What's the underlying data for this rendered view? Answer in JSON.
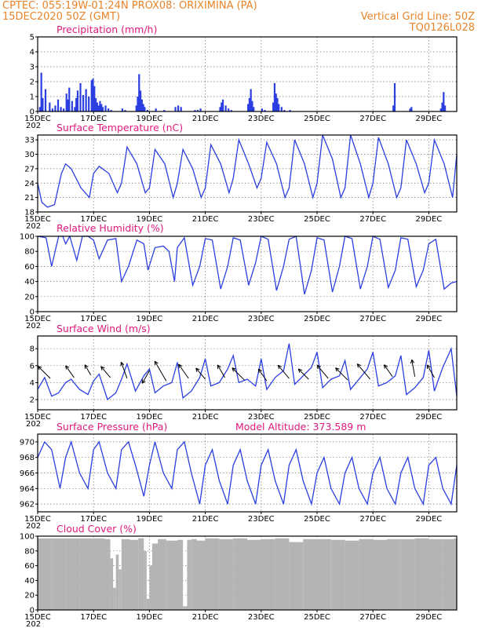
{
  "header": {
    "line1_left": "CPTEC:   055:19W-01:24N   PROX08: ORIXIMINA (PA)",
    "line2_left": "15DEC2020 50Z (GMT)",
    "line2_right": "Vertical Grid Line: 50Z",
    "line3_right": "TQ0126L028"
  },
  "colors": {
    "header": "#e8842a",
    "panel_title": "#e0197d",
    "series": "#2b3fe0",
    "cloud": "#b4b4b4",
    "wind_arrow": "#000000"
  },
  "x_ticks": [
    "15DEC",
    "17DEC",
    "19DEC",
    "21DEC",
    "23DEC",
    "25DEC",
    "27DEC",
    "29DEC"
  ],
  "x_year_fragment": "202",
  "chart_data": [
    {
      "id": "precip",
      "type": "bar",
      "title": "Precipitation  (mm/h)",
      "ylim": [
        0,
        5
      ],
      "yticks": [
        0,
        1,
        2,
        3,
        4,
        5
      ],
      "xlim": [
        0,
        15
      ],
      "series": [
        {
          "x": [
            0.05,
            0.1,
            0.15,
            0.25,
            0.4,
            0.5,
            0.6,
            0.7,
            0.8,
            0.9,
            1.0,
            1.05,
            1.1,
            1.2,
            1.3,
            1.35,
            1.4,
            1.5,
            1.6,
            1.7,
            1.8,
            1.9,
            1.95,
            2.0,
            2.05,
            2.1,
            2.15,
            2.2,
            2.25,
            2.3,
            2.4,
            2.5,
            2.6,
            3.0,
            3.1,
            3.5,
            3.55,
            3.6,
            3.65,
            3.7,
            3.75,
            3.8,
            3.9,
            4.2,
            4.5,
            4.9,
            5.0,
            5.1,
            5.6,
            5.7,
            5.8,
            6.5,
            6.55,
            6.6,
            6.7,
            6.8,
            6.9,
            7.5,
            7.55,
            7.6,
            7.65,
            7.7,
            8.0,
            8.1,
            8.4,
            8.45,
            8.5,
            8.55,
            8.6,
            8.7,
            8.8,
            9.0,
            12.7,
            12.75,
            13.3,
            13.35,
            14.4,
            14.45,
            14.5,
            14.55
          ],
          "values": [
            0.3,
            2.6,
            0.9,
            1.5,
            0.6,
            0.2,
            0.4,
            0.8,
            0.3,
            0.2,
            1.2,
            0.8,
            1.6,
            0.7,
            0.3,
            0.9,
            1.4,
            1.9,
            1.1,
            1.5,
            1.0,
            2.1,
            2.2,
            1.7,
            0.9,
            0.6,
            0.4,
            0.7,
            0.5,
            0.3,
            0.4,
            0.2,
            0.1,
            0.2,
            0.1,
            0.4,
            1.0,
            2.5,
            1.4,
            0.8,
            0.5,
            0.3,
            0.1,
            0.2,
            0.1,
            0.3,
            0.4,
            0.3,
            0.1,
            0.1,
            0.2,
            0.3,
            0.6,
            0.8,
            0.4,
            0.2,
            0.1,
            0.5,
            0.9,
            1.5,
            0.7,
            0.3,
            0.2,
            0.1,
            0.6,
            1.9,
            1.2,
            0.9,
            0.5,
            0.3,
            0.1,
            0.1,
            0.4,
            1.9,
            0.2,
            0.3,
            0.2,
            0.6,
            1.3,
            0.4
          ]
        }
      ]
    },
    {
      "id": "temp",
      "type": "line",
      "title": "Surface Temperature  (nC)",
      "ylim": [
        18,
        34
      ],
      "yticks": [
        18,
        21,
        24,
        27,
        30,
        33
      ],
      "xlim": [
        0,
        15
      ],
      "series": [
        {
          "x": [
            0,
            0.15,
            0.35,
            0.6,
            0.85,
            1.0,
            1.2,
            1.55,
            1.85,
            2.0,
            2.2,
            2.55,
            2.85,
            3.0,
            3.2,
            3.55,
            3.85,
            4.0,
            4.2,
            4.55,
            4.85,
            5.0,
            5.2,
            5.55,
            5.85,
            6.0,
            6.2,
            6.55,
            6.85,
            7.0,
            7.2,
            7.55,
            7.85,
            8.0,
            8.2,
            8.55,
            8.85,
            9.0,
            9.2,
            9.55,
            9.85,
            10.0,
            10.2,
            10.55,
            10.85,
            11.0,
            11.2,
            11.55,
            11.85,
            12.0,
            12.2,
            12.55,
            12.85,
            13.0,
            13.2,
            13.55,
            13.85,
            14.0,
            14.2,
            14.55,
            14.85,
            15.0
          ],
          "values": [
            24,
            20,
            19,
            19.5,
            26,
            28,
            27,
            23,
            21,
            26,
            27.5,
            26,
            22,
            24,
            31.5,
            28,
            22,
            23,
            31,
            28,
            21,
            24,
            31,
            27,
            21,
            23,
            32,
            28,
            22,
            25,
            33,
            28,
            23,
            25,
            32.5,
            28,
            21,
            23,
            33,
            28,
            21,
            24,
            34,
            29,
            21,
            23,
            34,
            28,
            21,
            24,
            33.5,
            28,
            21,
            23,
            33,
            28,
            22,
            24,
            33,
            28,
            21,
            30
          ]
        }
      ]
    },
    {
      "id": "rh",
      "type": "line",
      "title": "Relative Humidity  (%)",
      "ylim": [
        0,
        100
      ],
      "yticks": [
        0,
        20,
        40,
        60,
        80,
        100
      ],
      "xlim": [
        0,
        15
      ],
      "series": [
        {
          "x": [
            0,
            0.3,
            0.5,
            0.75,
            0.9,
            1.0,
            1.15,
            1.4,
            1.6,
            1.8,
            2.0,
            2.2,
            2.5,
            2.8,
            3.0,
            3.25,
            3.55,
            3.8,
            3.95,
            4.2,
            4.5,
            4.7,
            4.9,
            5.0,
            5.25,
            5.55,
            5.8,
            6.0,
            6.25,
            6.55,
            6.8,
            7.0,
            7.25,
            7.55,
            7.8,
            8.0,
            8.25,
            8.55,
            8.8,
            9.0,
            9.25,
            9.55,
            9.8,
            10.0,
            10.25,
            10.55,
            10.8,
            11.0,
            11.25,
            11.55,
            11.8,
            12.0,
            12.25,
            12.55,
            12.8,
            13.0,
            13.25,
            13.55,
            13.8,
            14.0,
            14.25,
            14.55,
            14.8,
            15.0
          ],
          "values": [
            100,
            98,
            60,
            100,
            100,
            90,
            100,
            68,
            100,
            100,
            95,
            70,
            95,
            97,
            40,
            60,
            95,
            90,
            55,
            85,
            87,
            80,
            40,
            85,
            98,
            35,
            60,
            97,
            95,
            30,
            60,
            98,
            95,
            35,
            65,
            100,
            96,
            28,
            60,
            96,
            100,
            23,
            55,
            98,
            95,
            26,
            60,
            100,
            97,
            30,
            60,
            100,
            96,
            32,
            55,
            98,
            96,
            33,
            55,
            90,
            96,
            30,
            38,
            40
          ]
        }
      ]
    },
    {
      "id": "wind",
      "type": "line",
      "title": "Surface Wind  (m/s)",
      "ylim": [
        0.8,
        9.5
      ],
      "yticks": [
        2,
        4,
        6,
        8
      ],
      "xlim": [
        0,
        15
      ],
      "series": [
        {
          "x": [
            0,
            0.25,
            0.5,
            0.75,
            1.0,
            1.2,
            1.5,
            1.8,
            2.0,
            2.2,
            2.5,
            2.8,
            3.0,
            3.2,
            3.5,
            3.8,
            4.0,
            4.2,
            4.5,
            4.8,
            5.0,
            5.2,
            5.5,
            5.8,
            6.0,
            6.2,
            6.5,
            6.8,
            7.0,
            7.2,
            7.5,
            7.8,
            8.0,
            8.2,
            8.5,
            8.8,
            9.0,
            9.2,
            9.5,
            9.8,
            10.0,
            10.2,
            10.5,
            10.8,
            11.0,
            11.2,
            11.5,
            11.8,
            12.0,
            12.2,
            12.5,
            12.8,
            13.0,
            13.2,
            13.5,
            13.8,
            14.0,
            14.2,
            14.5,
            14.8,
            15.0
          ],
          "values": [
            3.2,
            4.6,
            2.4,
            2.8,
            4.0,
            4.4,
            3.2,
            2.6,
            4.2,
            5.0,
            2.0,
            2.8,
            4.4,
            6.2,
            3.0,
            4.8,
            5.6,
            2.8,
            3.6,
            4.0,
            6.4,
            2.2,
            3.0,
            4.6,
            6.8,
            3.6,
            4.0,
            5.6,
            7.2,
            4.0,
            4.4,
            3.6,
            6.8,
            3.2,
            4.6,
            5.4,
            8.6,
            3.8,
            4.8,
            5.8,
            7.6,
            3.4,
            4.4,
            4.8,
            6.6,
            3.2,
            4.4,
            5.6,
            7.6,
            3.6,
            4.0,
            4.8,
            7.2,
            2.6,
            3.4,
            4.6,
            7.8,
            3.0,
            5.8,
            8.0,
            2.4
          ]
        }
      ],
      "arrows": [
        {
          "x": 0.45,
          "y": 4.5,
          "speed": 4,
          "toward": 225
        },
        {
          "x": 1.3,
          "y": 4.6,
          "speed": 3,
          "toward": 235
        },
        {
          "x": 1.9,
          "y": 4.9,
          "speed": 2,
          "toward": 240
        },
        {
          "x": 2.6,
          "y": 4.6,
          "speed": 3,
          "toward": 230
        },
        {
          "x": 3.2,
          "y": 4.5,
          "speed": 4,
          "toward": 250
        },
        {
          "x": 4.0,
          "y": 5.4,
          "speed": 3,
          "toward": 120
        },
        {
          "x": 4.6,
          "y": 4.2,
          "speed": 6,
          "toward": 240
        },
        {
          "x": 5.4,
          "y": 4.5,
          "speed": 4,
          "toward": 235
        },
        {
          "x": 6.0,
          "y": 4.4,
          "speed": 3,
          "toward": 230
        },
        {
          "x": 6.7,
          "y": 4.6,
          "speed": 3,
          "toward": 240
        },
        {
          "x": 7.4,
          "y": 4.3,
          "speed": 4,
          "toward": 225
        },
        {
          "x": 8.2,
          "y": 4.2,
          "speed": 3,
          "toward": 235
        },
        {
          "x": 9.0,
          "y": 4.5,
          "speed": 4,
          "toward": 230
        },
        {
          "x": 9.7,
          "y": 4.4,
          "speed": 3,
          "toward": 225
        },
        {
          "x": 10.4,
          "y": 4.5,
          "speed": 4,
          "toward": 230
        },
        {
          "x": 11.1,
          "y": 4.3,
          "speed": 4,
          "toward": 225
        },
        {
          "x": 11.9,
          "y": 4.4,
          "speed": 5,
          "toward": 230
        },
        {
          "x": 12.7,
          "y": 4.7,
          "speed": 3,
          "toward": 235
        },
        {
          "x": 13.5,
          "y": 4.7,
          "speed": 4,
          "toward": 260
        },
        {
          "x": 14.2,
          "y": 4.6,
          "speed": 3,
          "toward": 240
        }
      ]
    },
    {
      "id": "pressure",
      "type": "line",
      "title": "Surface Pressure  (hPa)",
      "subtitle": "Model Altitude: 373.589  m",
      "ylim": [
        961,
        971
      ],
      "yticks": [
        962,
        964,
        966,
        968,
        970
      ],
      "xlim": [
        0,
        15
      ],
      "series": [
        {
          "x": [
            0,
            0.25,
            0.5,
            0.8,
            1.0,
            1.2,
            1.5,
            1.8,
            2.0,
            2.2,
            2.5,
            2.8,
            3.0,
            3.25,
            3.5,
            3.8,
            4.0,
            4.2,
            4.5,
            4.8,
            5.0,
            5.25,
            5.5,
            5.8,
            6.0,
            6.25,
            6.5,
            6.8,
            7.0,
            7.25,
            7.5,
            7.8,
            8.0,
            8.25,
            8.5,
            8.8,
            9.0,
            9.25,
            9.5,
            9.8,
            10.0,
            10.25,
            10.5,
            10.8,
            11.0,
            11.25,
            11.5,
            11.8,
            12.0,
            12.25,
            12.5,
            12.8,
            13.0,
            13.25,
            13.5,
            13.8,
            14.0,
            14.25,
            14.5,
            14.8,
            15.0
          ],
          "values": [
            968,
            970,
            969,
            964,
            968,
            970,
            966,
            964,
            969,
            970,
            966,
            964,
            969,
            970,
            967,
            963,
            967,
            970,
            966,
            964,
            969,
            970,
            966,
            962,
            967,
            969,
            965,
            962,
            967,
            969,
            965,
            962,
            967,
            969,
            965,
            962,
            967,
            969,
            965,
            962,
            966,
            968,
            964,
            962,
            966,
            968,
            964,
            962,
            966,
            968,
            964,
            962,
            966,
            968,
            964,
            962,
            967,
            968,
            964,
            962,
            967
          ]
        }
      ]
    },
    {
      "id": "cloud",
      "type": "bar",
      "title": "Cloud Cover  (%)",
      "ylim": [
        0,
        100
      ],
      "yticks": [
        0,
        20,
        40,
        60,
        80,
        100
      ],
      "xlim": [
        0,
        15
      ],
      "series": [
        {
          "x": [
            0,
            0.5,
            1.0,
            1.5,
            2.0,
            2.4,
            2.6,
            2.7,
            2.8,
            2.9,
            3.0,
            3.3,
            3.6,
            3.8,
            3.9,
            4.0,
            4.1,
            4.3,
            4.6,
            5.0,
            5.2,
            5.35,
            5.5,
            5.7,
            6.0,
            6.5,
            7.0,
            7.5,
            8.0,
            8.5,
            9.0,
            9.5,
            10.0,
            10.5,
            11.0,
            11.5,
            12.0,
            12.5,
            13.0,
            13.5,
            14.0,
            14.5,
            14.9
          ],
          "values": [
            97,
            97,
            97,
            97,
            97,
            96,
            70,
            30,
            75,
            55,
            96,
            95,
            97,
            80,
            15,
            60,
            90,
            96,
            94,
            95,
            5,
            95,
            96,
            94,
            97,
            96,
            97,
            95,
            96,
            97,
            92,
            96,
            96,
            95,
            94,
            96,
            95,
            96,
            96,
            97,
            96,
            96,
            97
          ]
        }
      ]
    }
  ]
}
